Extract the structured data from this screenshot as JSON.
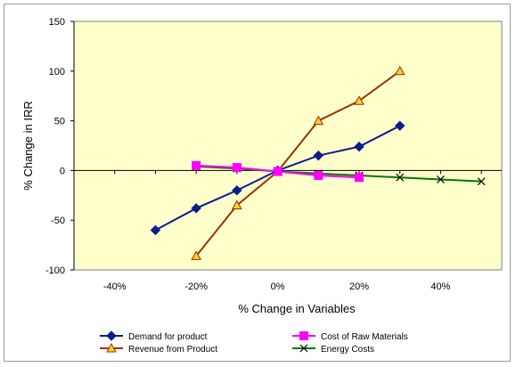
{
  "chart_data": {
    "type": "line",
    "title": "",
    "xlabel": "% Change in Variables",
    "ylabel": "% Change in IRR",
    "xlim": [
      -0.5,
      0.55
    ],
    "ylim": [
      -100,
      150
    ],
    "x_ticks": [
      -0.4,
      -0.2,
      0,
      0.2,
      0.4
    ],
    "x_tick_labels": [
      "-40%",
      "-20%",
      "0%",
      "20%",
      "40%"
    ],
    "y_ticks": [
      -100,
      -50,
      0,
      50,
      100,
      150
    ],
    "y_tick_labels": [
      "-100",
      "-50",
      "0",
      "50",
      "100",
      "150"
    ],
    "plot_background": "#ffffcc",
    "grid": false,
    "legend_position": "bottom",
    "series": [
      {
        "name": "Demand for product",
        "color": "#0a1e8c",
        "marker": "diamond",
        "x": [
          -0.3,
          -0.2,
          -0.1,
          0,
          0.1,
          0.2,
          0.3
        ],
        "y": [
          -60,
          -38,
          -20,
          0,
          15,
          24,
          45
        ]
      },
      {
        "name": "Cost of Raw Materials",
        "color": "#ff00ff",
        "marker": "square",
        "x": [
          -0.2,
          -0.1,
          0,
          0.1,
          0.2
        ],
        "y": [
          5,
          3,
          -1,
          -5,
          -7
        ]
      },
      {
        "name": "Revenue from Product",
        "color": "#993300",
        "marker": "triangle",
        "x": [
          -0.2,
          -0.1,
          0,
          0.1,
          0.2,
          0.3
        ],
        "y": [
          -86,
          -35,
          -1,
          50,
          70,
          100
        ]
      },
      {
        "name": "Energy Costs",
        "color": "#007a00",
        "marker": "x",
        "x": [
          -0.2,
          -0.1,
          0,
          0.1,
          0.2,
          0.3,
          0.4,
          0.5
        ],
        "y": [
          4,
          2,
          -1,
          -3,
          -5,
          -7,
          -9,
          -11
        ]
      }
    ]
  }
}
